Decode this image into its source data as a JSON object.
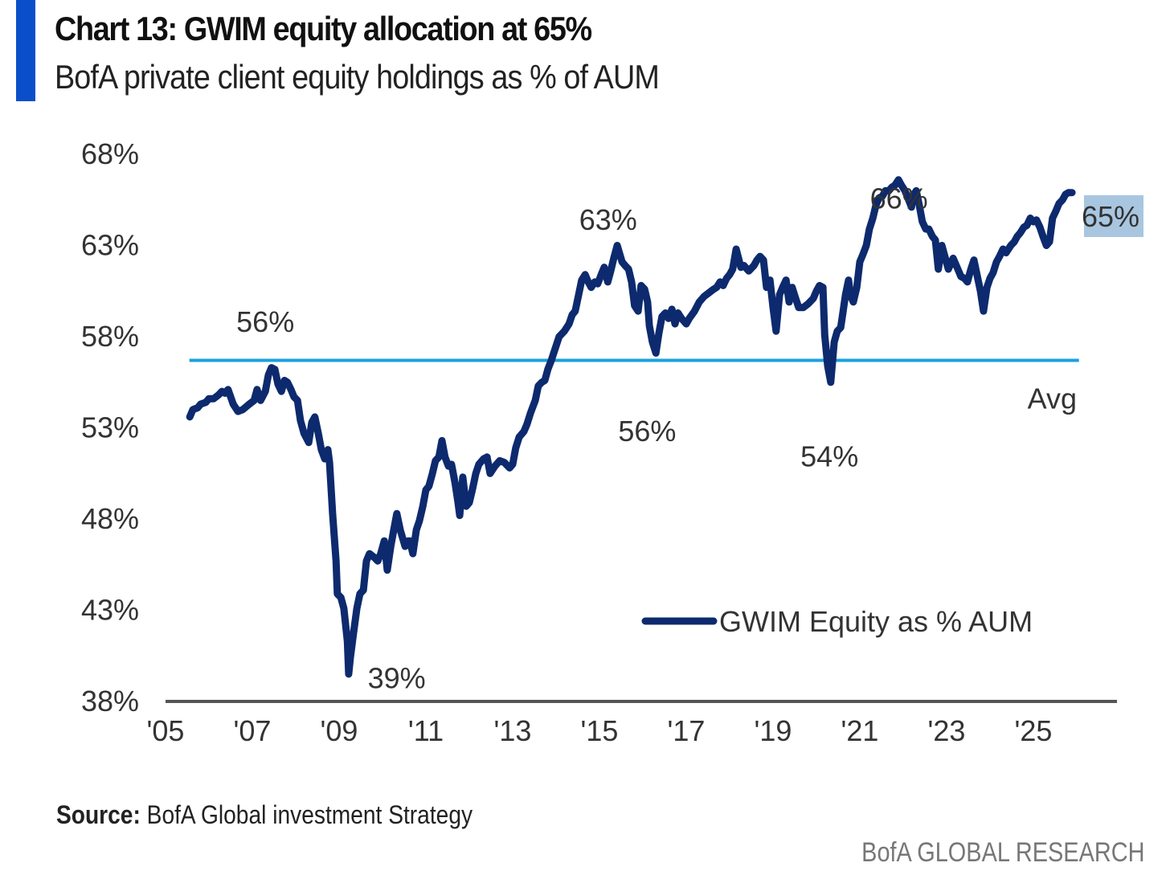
{
  "header": {
    "title": "Chart 13: GWIM equity allocation at 65%",
    "subtitle": "BofA private client equity holdings as % of AUM",
    "accent_color": "#0a4fc9"
  },
  "footer": {
    "source_label": "Source:",
    "source_text": " BofA Global investment Strategy",
    "brand": "BofA GLOBAL RESEARCH"
  },
  "chart_data": {
    "type": "line",
    "title": "Chart 13: GWIM equity allocation at 65%",
    "subtitle": "BofA private client equity holdings as % of AUM",
    "xlabel": "",
    "ylabel": "",
    "xlim": [
      2005,
      2027.2
    ],
    "ylim": [
      38,
      68
    ],
    "x_ticks": [
      2005,
      2007,
      2009,
      2011,
      2013,
      2015,
      2017,
      2019,
      2021,
      2023,
      2025
    ],
    "x_tick_labels": [
      "'05",
      "'07",
      "'09",
      "'11",
      "'13",
      "'15",
      "'17",
      "'19",
      "'21",
      "'23",
      "'25"
    ],
    "y_ticks": [
      38,
      43,
      48,
      53,
      58,
      63,
      68
    ],
    "y_tick_labels": [
      "38%",
      "43%",
      "48%",
      "53%",
      "58%",
      "63%",
      "68%"
    ],
    "grid": false,
    "legend": {
      "position": "bottom-right",
      "entries": [
        "GWIM Equity as % AUM"
      ]
    },
    "series_color": "#0d2a6e",
    "avg_color": "#1aa0e0",
    "highlight_color": "#a9c6e0",
    "average": {
      "label": "Avg",
      "value": 56.7,
      "x_range": [
        2005.55,
        2026.05
      ]
    },
    "annotations": [
      {
        "text": "56%",
        "x": 2007.3,
        "y": 56.6
      },
      {
        "text": "39%",
        "x": 2009.4,
        "y": 39.0
      },
      {
        "text": "63%",
        "x": 2015.2,
        "y": 62.1
      },
      {
        "text": "56%",
        "x": 2016.1,
        "y": 55.8
      },
      {
        "text": "54%",
        "x": 2020.3,
        "y": 53.8
      },
      {
        "text": "66%",
        "x": 2021.9,
        "y": 64.5
      },
      {
        "text": "65%",
        "x": 2026.1,
        "y": 64.9,
        "highlight": true
      }
    ],
    "series": [
      {
        "name": "GWIM Equity as % AUM",
        "x": [
          2005.56,
          2005.63,
          2005.74,
          2005.81,
          2005.93,
          2006.0,
          2006.11,
          2006.22,
          2006.3,
          2006.37,
          2006.44,
          2006.56,
          2006.67,
          2006.78,
          2006.93,
          2007.04,
          2007.11,
          2007.19,
          2007.3,
          2007.37,
          2007.44,
          2007.52,
          2007.59,
          2007.67,
          2007.74,
          2007.81,
          2007.89,
          2007.96,
          2008.04,
          2008.11,
          2008.19,
          2008.3,
          2008.37,
          2008.44,
          2008.52,
          2008.59,
          2008.67,
          2008.74,
          2008.78,
          2008.85,
          2008.93,
          2008.96,
          2009.04,
          2009.11,
          2009.19,
          2009.22,
          2009.26,
          2009.33,
          2009.41,
          2009.48,
          2009.56,
          2009.63,
          2009.7,
          2009.81,
          2009.89,
          2009.96,
          2010.04,
          2010.11,
          2010.19,
          2010.26,
          2010.33,
          2010.41,
          2010.52,
          2010.59,
          2010.63,
          2010.7,
          2010.78,
          2010.85,
          2010.93,
          2011.0,
          2011.07,
          2011.15,
          2011.22,
          2011.3,
          2011.37,
          2011.44,
          2011.52,
          2011.59,
          2011.67,
          2011.74,
          2011.78,
          2011.85,
          2011.93,
          2012.0,
          2012.07,
          2012.15,
          2012.22,
          2012.33,
          2012.41,
          2012.48,
          2012.59,
          2012.7,
          2012.81,
          2012.93,
          2013.0,
          2013.07,
          2013.15,
          2013.26,
          2013.33,
          2013.41,
          2013.52,
          2013.59,
          2013.67,
          2013.74,
          2013.81,
          2013.89,
          2013.96,
          2014.07,
          2014.19,
          2014.3,
          2014.37,
          2014.44,
          2014.52,
          2014.59,
          2014.67,
          2014.74,
          2014.81,
          2014.89,
          2014.96,
          2015.04,
          2015.11,
          2015.19,
          2015.26,
          2015.33,
          2015.41,
          2015.52,
          2015.59,
          2015.67,
          2015.74,
          2015.81,
          2015.89,
          2015.96,
          2016.04,
          2016.11,
          2016.15,
          2016.22,
          2016.3,
          2016.37,
          2016.44,
          2016.52,
          2016.59,
          2016.67,
          2016.74,
          2016.81,
          2016.89,
          2017.0,
          2017.07,
          2017.19,
          2017.3,
          2017.41,
          2017.52,
          2017.63,
          2017.7,
          2017.78,
          2017.85,
          2017.93,
          2018.0,
          2018.07,
          2018.15,
          2018.26,
          2018.33,
          2018.44,
          2018.56,
          2018.63,
          2018.7,
          2018.78,
          2018.85,
          2018.93,
          2019.0,
          2019.07,
          2019.15,
          2019.22,
          2019.3,
          2019.37,
          2019.44,
          2019.52,
          2019.59,
          2019.7,
          2019.81,
          2019.93,
          2020.0,
          2020.07,
          2020.15,
          2020.19,
          2020.26,
          2020.33,
          2020.41,
          2020.48,
          2020.56,
          2020.59,
          2020.67,
          2020.74,
          2020.78,
          2020.85,
          2020.93,
          2021.0,
          2021.07,
          2021.15,
          2021.22,
          2021.3,
          2021.37,
          2021.44,
          2021.52,
          2021.59,
          2021.67,
          2021.74,
          2021.81,
          2021.89,
          2021.96,
          2022.04,
          2022.11,
          2022.19,
          2022.22,
          2022.3,
          2022.37,
          2022.44,
          2022.52,
          2022.59,
          2022.67,
          2022.74,
          2022.81,
          2022.89,
          2022.96,
          2023.04,
          2023.15,
          2023.26,
          2023.33,
          2023.41,
          2023.48,
          2023.56,
          2023.63,
          2023.7,
          2023.78,
          2023.85,
          2023.93,
          2024.0,
          2024.07,
          2024.15,
          2024.22,
          2024.3,
          2024.37,
          2024.48,
          2024.56,
          2024.63,
          2024.7,
          2024.78,
          2024.85,
          2024.93,
          2025.0,
          2025.07,
          2025.15,
          2025.22,
          2025.3,
          2025.37,
          2025.44,
          2025.52,
          2025.59,
          2025.67,
          2025.74,
          2025.81,
          2025.89
        ],
        "y": [
          53.6,
          54.0,
          54.1,
          54.3,
          54.4,
          54.6,
          54.6,
          54.8,
          55.0,
          54.9,
          55.1,
          54.3,
          53.9,
          54.0,
          54.3,
          54.5,
          55.1,
          54.5,
          55.0,
          55.9,
          56.3,
          56.2,
          55.4,
          55.0,
          55.6,
          55.5,
          55.1,
          54.7,
          54.5,
          53.4,
          52.7,
          52.2,
          53.3,
          53.6,
          52.7,
          51.8,
          51.3,
          51.8,
          51.1,
          48.3,
          45.7,
          43.9,
          43.7,
          43.1,
          41.3,
          39.5,
          40.4,
          41.7,
          43.1,
          43.9,
          44.1,
          45.7,
          46.1,
          45.9,
          45.7,
          46.1,
          46.8,
          45.2,
          46.5,
          47.4,
          48.3,
          47.4,
          46.5,
          46.8,
          46.8,
          46.1,
          47.4,
          47.9,
          48.7,
          49.6,
          49.8,
          50.5,
          51.2,
          51.4,
          52.3,
          51.4,
          50.9,
          51.0,
          50.0,
          48.9,
          48.2,
          50.3,
          48.7,
          48.9,
          49.6,
          50.5,
          51.0,
          51.3,
          51.4,
          50.5,
          50.9,
          51.2,
          51.1,
          50.8,
          51.0,
          51.9,
          52.5,
          52.8,
          53.2,
          53.8,
          54.5,
          55.3,
          55.5,
          55.6,
          56.2,
          56.7,
          57.2,
          58.0,
          58.3,
          58.7,
          59.2,
          59.4,
          60.3,
          61.1,
          61.4,
          61.0,
          60.7,
          61.0,
          60.9,
          61.4,
          61.8,
          61.0,
          61.6,
          62.3,
          63.0,
          62.1,
          61.9,
          61.7,
          61.0,
          59.7,
          59.4,
          60.8,
          60.6,
          59.9,
          58.6,
          57.7,
          57.1,
          58.2,
          59.1,
          59.3,
          59.0,
          59.5,
          58.7,
          59.3,
          59.0,
          58.7,
          59.0,
          59.4,
          59.9,
          60.2,
          60.4,
          60.6,
          60.7,
          61.0,
          60.8,
          61.2,
          61.4,
          61.7,
          62.8,
          61.8,
          61.9,
          61.6,
          61.9,
          62.2,
          62.4,
          62.2,
          60.7,
          61.1,
          59.6,
          58.3,
          60.3,
          60.7,
          61.1,
          59.9,
          60.7,
          60.1,
          59.6,
          59.6,
          59.8,
          60.1,
          60.5,
          60.8,
          60.7,
          58.1,
          56.4,
          55.5,
          57.7,
          58.3,
          58.5,
          59.0,
          60.3,
          61.1,
          60.3,
          59.9,
          60.7,
          62.1,
          62.5,
          63.0,
          63.9,
          64.5,
          65.2,
          65.6,
          65.7,
          66.0,
          66.0,
          66.2,
          66.3,
          66.6,
          66.3,
          66.0,
          65.6,
          65.1,
          65.7,
          66.0,
          65.2,
          64.3,
          63.9,
          63.9,
          63.5,
          63.3,
          61.7,
          63.0,
          62.4,
          61.7,
          62.3,
          61.7,
          61.3,
          61.2,
          61.0,
          61.7,
          62.2,
          61.4,
          60.5,
          59.4,
          60.7,
          61.2,
          61.5,
          62.1,
          62.4,
          62.8,
          62.6,
          63.0,
          63.2,
          63.5,
          63.7,
          64.0,
          64.1,
          64.5,
          64.3,
          64.4,
          64.0,
          63.5,
          63.0,
          63.2,
          64.5,
          64.9,
          65.3,
          65.5,
          65.8,
          65.9,
          65.9
        ]
      }
    ]
  }
}
